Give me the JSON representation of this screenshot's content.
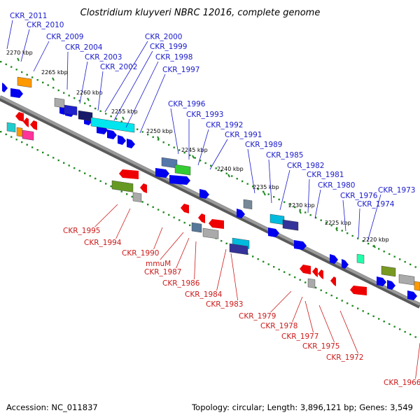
{
  "title": "Clostridium kluyveri NBRC 12016, complete genome",
  "footer": {
    "accession": "Accession: NC_011837",
    "summary": "Topology: circular; Length: 3,896,121 bp; Genes: 3,549"
  },
  "colors": {
    "forward_label": "#1a1acc",
    "reverse_label": "#cc1a1a",
    "forward_arrow": "#0000ee",
    "reverse_arrow": "#ee0000",
    "backbone": "#8a8a8a",
    "ticks": "#228b22"
  },
  "kbp_ticks": [
    "2270 kbp",
    "2265 kbp",
    "2260 kbp",
    "2255 kbp",
    "2250 kbp",
    "2245 kbp",
    "2240 kbp",
    "2235 kbp",
    "2230 kbp",
    "2225 kbp",
    "2220 kbp"
  ],
  "forward_genes": [
    "CKR_2011",
    "CKR_2010",
    "CKR_2009",
    "CKR_2004",
    "CKR_2003",
    "CKR_2002",
    "CKR_2000",
    "CKR_1999",
    "CKR_1998",
    "CKR_1997",
    "CKR_1996",
    "CKR_1993",
    "CKR_1992",
    "CKR_1991",
    "CKR_1989",
    "CKR_1985",
    "CKR_1982",
    "CKR_1981",
    "CKR_1980",
    "CKR_1976",
    "CKR_1974",
    "CKR_1973"
  ],
  "reverse_genes": [
    "CKR_1995",
    "CKR_1994",
    "CKR_1990",
    "mmuM",
    "CKR_1987",
    "CKR_1986",
    "CKR_1984",
    "CKR_1983",
    "CKR_1979",
    "CKR_1978",
    "CKR_1977",
    "CKR_1975",
    "CKR_1972",
    "CKR_1966"
  ]
}
